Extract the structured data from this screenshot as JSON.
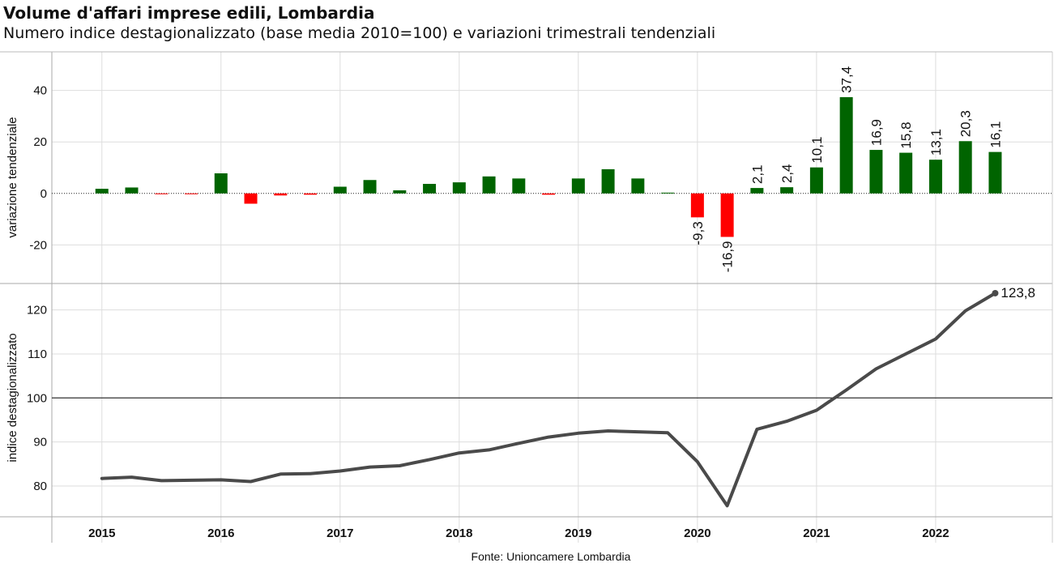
{
  "title": "Volume d'affari imprese edili, Lombardia",
  "subtitle": "Numero indice destagionalizzato (base media 2010=100) e variazioni trimestrali tendenziali",
  "source": "Fonte: Unioncamere Lombardia",
  "colors": {
    "positive": "#006400",
    "negative": "#ff0000",
    "line": "#4a4a4a",
    "grid": "#dddddd",
    "reference": "#333333"
  },
  "chart_data": [
    {
      "type": "bar",
      "ylabel": "variazione tendenziale",
      "ylim": [
        -35,
        55
      ],
      "yticks": [
        {
          "v": 40,
          "label": "40"
        },
        {
          "v": 20,
          "label": "20"
        },
        {
          "v": 0,
          "label": "0"
        },
        {
          "v": -20,
          "label": "-20"
        }
      ],
      "x": [
        2015.0,
        2015.25,
        2015.5,
        2015.75,
        2016.0,
        2016.25,
        2016.5,
        2016.75,
        2017.0,
        2017.25,
        2017.5,
        2017.75,
        2018.0,
        2018.25,
        2018.5,
        2018.75,
        2019.0,
        2019.25,
        2019.5,
        2019.75,
        2020.0,
        2020.25,
        2020.5,
        2020.75,
        2021.0,
        2021.25,
        2021.5,
        2021.75,
        2022.0,
        2022.25,
        2022.5
      ],
      "values": [
        1.8,
        2.3,
        -0.2,
        -0.3,
        7.8,
        -4.0,
        -0.8,
        -0.5,
        2.6,
        5.2,
        1.2,
        3.7,
        4.3,
        6.6,
        5.8,
        -0.5,
        5.8,
        9.4,
        5.8,
        0.3,
        -9.3,
        -16.9,
        2.1,
        2.4,
        10.1,
        37.4,
        16.9,
        15.8,
        13.1,
        20.3,
        16.1
      ],
      "data_labels": [
        {
          "i": 20,
          "label": "-9,3"
        },
        {
          "i": 21,
          "label": "-16,9"
        },
        {
          "i": 22,
          "label": "2,1"
        },
        {
          "i": 23,
          "label": "2,4"
        },
        {
          "i": 24,
          "label": "10,1"
        },
        {
          "i": 25,
          "label": "37,4"
        },
        {
          "i": 26,
          "label": "16,9"
        },
        {
          "i": 27,
          "label": "15,8"
        },
        {
          "i": 28,
          "label": "13,1"
        },
        {
          "i": 29,
          "label": "20,3"
        },
        {
          "i": 30,
          "label": "16,1"
        }
      ]
    },
    {
      "type": "line",
      "ylabel": "indice destagionalizzato",
      "ylim": [
        73,
        126
      ],
      "yticks": [
        {
          "v": 120,
          "label": "120"
        },
        {
          "v": 110,
          "label": "110"
        },
        {
          "v": 100,
          "label": "100"
        },
        {
          "v": 90,
          "label": "90"
        },
        {
          "v": 80,
          "label": "80"
        }
      ],
      "reference_line": 100,
      "x": [
        2015.0,
        2015.25,
        2015.5,
        2015.75,
        2016.0,
        2016.25,
        2016.5,
        2016.75,
        2017.0,
        2017.25,
        2017.5,
        2017.75,
        2018.0,
        2018.25,
        2018.5,
        2018.75,
        2019.0,
        2019.25,
        2019.5,
        2019.75,
        2020.0,
        2020.25,
        2020.5,
        2020.75,
        2021.0,
        2021.25,
        2021.5,
        2021.75,
        2022.0,
        2022.25,
        2022.5
      ],
      "values": [
        81.7,
        82.0,
        81.2,
        81.3,
        81.4,
        81.0,
        82.7,
        82.8,
        83.4,
        84.3,
        84.6,
        86.0,
        87.5,
        88.2,
        89.7,
        91.1,
        92.0,
        92.5,
        92.3,
        92.1,
        85.5,
        75.5,
        92.9,
        94.7,
        97.2,
        101.8,
        106.6,
        110.0,
        113.4,
        119.8,
        123.8
      ],
      "end_label": "123,8"
    }
  ],
  "xticks": [
    {
      "v": 2015,
      "label": "2015"
    },
    {
      "v": 2016,
      "label": "2016"
    },
    {
      "v": 2017,
      "label": "2017"
    },
    {
      "v": 2018,
      "label": "2018"
    },
    {
      "v": 2019,
      "label": "2019"
    },
    {
      "v": 2020,
      "label": "2020"
    },
    {
      "v": 2021,
      "label": "2021"
    },
    {
      "v": 2022,
      "label": "2022"
    }
  ],
  "xlim": [
    2014.58,
    2022.98
  ]
}
